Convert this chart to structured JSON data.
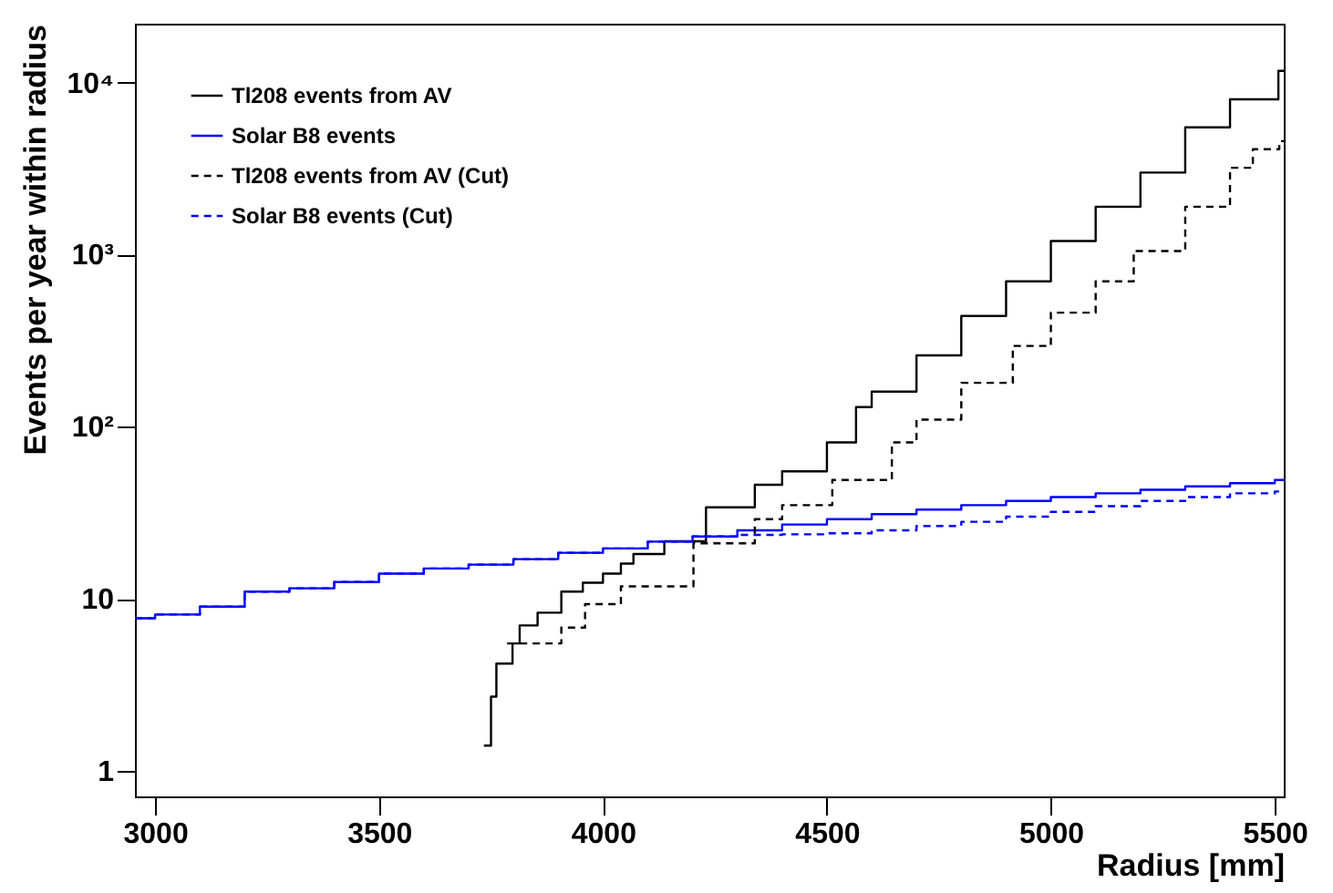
{
  "chart_data": {
    "type": "step",
    "xlabel": "Radius [mm]",
    "ylabel": "Events per year within radius",
    "log": "y",
    "legend": "top left",
    "xlim": [
      2955,
      5520
    ],
    "xticks": [
      3000,
      3500,
      4000,
      4500,
      5000,
      5500
    ],
    "ylim": [
      0.71,
      22000
    ],
    "yticks": [
      1,
      10,
      {
        "value": 100,
        "label": "10²"
      },
      {
        "value": 1000,
        "label": "10³"
      },
      {
        "value": 10000,
        "label": "10⁴"
      }
    ],
    "series": [
      {
        "name": "Tl208 events from AV",
        "color": "#000000",
        "line_style": "solid",
        "x": [
          3734,
          3750,
          3762,
          3798,
          3814,
          3854,
          3907,
          3955,
          4000,
          4040,
          4068,
          4137,
          4230,
          4339,
          4400,
          4500,
          4565,
          4600,
          4700,
          4800,
          4900,
          5000,
          5100,
          5200,
          5300,
          5400,
          5508,
          5520
        ],
        "values": [
          1.4,
          2.7,
          4.2,
          5.5,
          7,
          8.3,
          11,
          12.4,
          14,
          16,
          18.2,
          21.6,
          34,
          46,
          55,
          81,
          130,
          160,
          260,
          440,
          700,
          1200,
          1900,
          3000,
          5500,
          8000,
          11700,
          11700
        ]
      },
      {
        "name": "Solar B8 events",
        "color": "#0000ff",
        "line_style": "solid",
        "x": [
          2955,
          3000,
          3100,
          3200,
          3300,
          3400,
          3500,
          3600,
          3700,
          3800,
          3900,
          4000,
          4100,
          4200,
          4300,
          4400,
          4500,
          4600,
          4700,
          4800,
          4900,
          5000,
          5100,
          5200,
          5300,
          5400,
          5500,
          5520
        ],
        "values": [
          7.7,
          8.1,
          9,
          11,
          11.5,
          12.5,
          14,
          15,
          15.8,
          17,
          18.5,
          19.6,
          21.5,
          23,
          25,
          27,
          29,
          31,
          33,
          35,
          37,
          39,
          41,
          43,
          45,
          47,
          49,
          49
        ]
      },
      {
        "name": "Tl208 events from AV (Cut)",
        "color": "#000000",
        "line_style": "dashed",
        "x": [
          3786,
          3907,
          3960,
          4040,
          4109,
          4202,
          4339,
          4400,
          4512,
          4645,
          4700,
          4800,
          4915,
          5000,
          5100,
          5185,
          5300,
          5400,
          5451,
          5510,
          5520
        ],
        "values": [
          5.5,
          6.8,
          9.3,
          11.8,
          11.8,
          21,
          29,
          35,
          49,
          81,
          110,
          180,
          295,
          460,
          700,
          1050,
          1900,
          3200,
          4100,
          4570,
          4570
        ]
      },
      {
        "name": "Solar B8 events (Cut)",
        "color": "#0000ff",
        "line_style": "dashed",
        "x": [
          2955,
          3000,
          3100,
          3200,
          3300,
          3400,
          3500,
          3600,
          3700,
          3800,
          3900,
          4000,
          4100,
          4200,
          4300,
          4400,
          4500,
          4600,
          4700,
          4800,
          4900,
          5000,
          5100,
          5200,
          5300,
          5400,
          5500,
          5520
        ],
        "values": [
          7.7,
          8.1,
          9,
          11,
          11.5,
          12.5,
          14,
          15,
          15.8,
          17,
          18.5,
          19.6,
          21.5,
          23,
          23.5,
          23.7,
          24,
          25,
          26.5,
          28,
          30,
          32,
          34.5,
          37,
          39,
          41,
          42,
          42
        ]
      }
    ]
  }
}
